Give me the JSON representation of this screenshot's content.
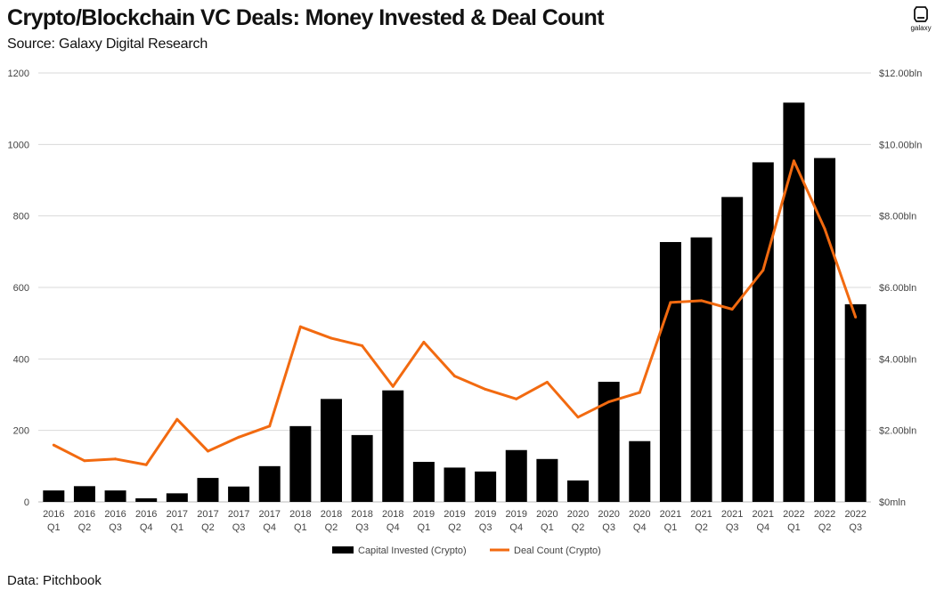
{
  "header": {
    "title": "Crypto/Blockchain VC Deals: Money Invested & Deal Count",
    "subtitle": "Source: Galaxy Digital Research"
  },
  "footer": {
    "text": "Data: Pitchbook"
  },
  "logo": {
    "text": "galaxy",
    "icon": "galaxy-logo"
  },
  "colors": {
    "bars": "#000000",
    "line": "#f26a10",
    "grid": "#d9d9d9"
  },
  "chart_data": {
    "type": "bar",
    "title": "Crypto/Blockchain VC Deals: Money Invested & Deal Count",
    "categories": [
      [
        "2016",
        "Q1"
      ],
      [
        "2016",
        "Q2"
      ],
      [
        "2016",
        "Q3"
      ],
      [
        "2016",
        "Q4"
      ],
      [
        "2017",
        "Q1"
      ],
      [
        "2017",
        "Q2"
      ],
      [
        "2017",
        "Q3"
      ],
      [
        "2017",
        "Q4"
      ],
      [
        "2018",
        "Q1"
      ],
      [
        "2018",
        "Q2"
      ],
      [
        "2018",
        "Q3"
      ],
      [
        "2018",
        "Q4"
      ],
      [
        "2019",
        "Q1"
      ],
      [
        "2019",
        "Q2"
      ],
      [
        "2019",
        "Q3"
      ],
      [
        "2019",
        "Q4"
      ],
      [
        "2020",
        "Q1"
      ],
      [
        "2020",
        "Q2"
      ],
      [
        "2020",
        "Q3"
      ],
      [
        "2020",
        "Q4"
      ],
      [
        "2021",
        "Q1"
      ],
      [
        "2021",
        "Q2"
      ],
      [
        "2021",
        "Q3"
      ],
      [
        "2021",
        "Q4"
      ],
      [
        "2022",
        "Q1"
      ],
      [
        "2022",
        "Q2"
      ],
      [
        "2022",
        "Q3"
      ]
    ],
    "series": [
      {
        "name": "Capital Invested (Crypto)",
        "type": "bar",
        "axis": "right",
        "values": [
          0.32,
          0.44,
          0.32,
          0.1,
          0.24,
          0.67,
          0.43,
          1.0,
          2.12,
          2.88,
          1.87,
          3.12,
          1.12,
          0.96,
          0.85,
          1.45,
          1.2,
          0.6,
          3.36,
          1.7,
          7.27,
          7.4,
          8.53,
          9.5,
          11.17,
          9.62,
          5.53
        ]
      },
      {
        "name": "Deal Count (Crypto)",
        "type": "line",
        "axis": "left",
        "values": [
          159,
          115,
          120,
          104,
          231,
          142,
          181,
          212,
          490,
          458,
          437,
          323,
          447,
          352,
          315,
          288,
          335,
          237,
          280,
          306,
          558,
          563,
          539,
          648,
          954,
          764,
          517
        ]
      }
    ],
    "left_axis": {
      "ylim": [
        0,
        1200
      ],
      "ticks": [
        "0",
        "200",
        "400",
        "600",
        "800",
        "1000",
        "1200"
      ]
    },
    "right_axis": {
      "ylim": [
        0,
        12
      ],
      "ticks": [
        "$0mln",
        "$2.00bln",
        "$4.00bln",
        "$6.00bln",
        "$8.00bln",
        "$10.00bln",
        "$12.00bln"
      ]
    },
    "grid": true,
    "legend": {
      "position": "bottom-center",
      "items": [
        "Capital Invested (Crypto)",
        "Deal Count (Crypto)"
      ]
    }
  }
}
